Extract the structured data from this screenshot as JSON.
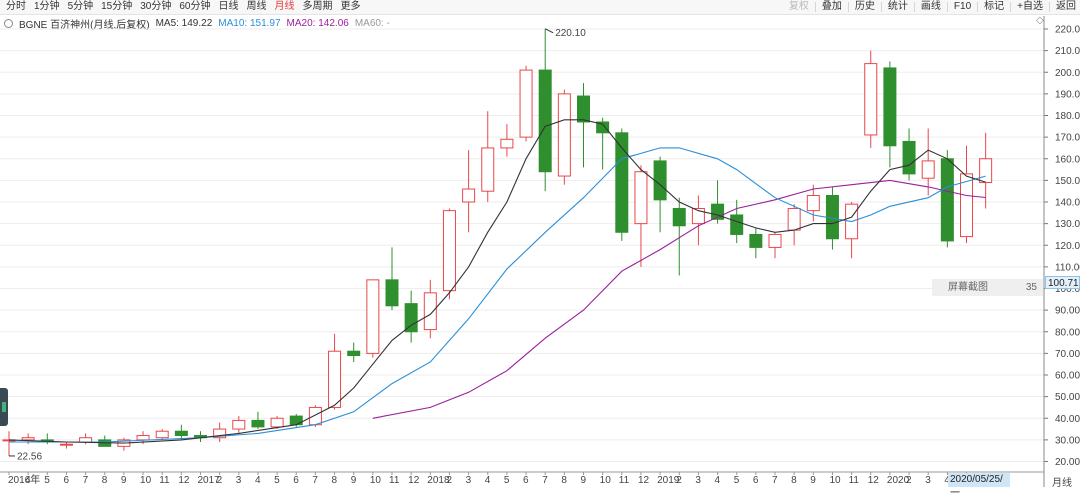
{
  "toolbar": {
    "periods": [
      "分时",
      "1分钟",
      "5分钟",
      "15分钟",
      "30分钟",
      "60分钟",
      "日线",
      "周线",
      "月线",
      "多周期",
      "更多"
    ],
    "active_period": "月线",
    "right_items": [
      "复权",
      "叠加",
      "历史",
      "统计",
      "画线",
      "F10",
      "标记",
      "+自选",
      "返回"
    ]
  },
  "legend": {
    "symbol": "BGNE 百济神州(月线,后复权)",
    "ma5": "MA5: 149.22",
    "ma10": "MA10: 151.97",
    "ma20": "MA20: 142.06",
    "ma60": "MA60: -"
  },
  "colors": {
    "up": "#e8474b",
    "down": "#2f8f2f",
    "ma5": "#333333",
    "ma10": "#2a8fd8",
    "ma20": "#9b1f9b",
    "grid": "#ededed"
  },
  "annotations": {
    "high_label": "220.10",
    "low_label": "22.56",
    "current_price": "100.71",
    "cursor_date": "2020/05/25/一",
    "period_label": "月线",
    "tooltip_label": "屏幕截图",
    "tooltip_value": "35"
  },
  "chart_data": {
    "type": "candlestick",
    "ylim": [
      15,
      225
    ],
    "y_ticks": [
      20,
      30,
      40,
      50,
      60,
      70,
      80,
      90,
      100,
      110,
      120,
      130,
      140,
      150,
      160,
      170,
      180,
      190,
      200,
      210,
      220
    ],
    "x_tick_labels": [
      "2016年",
      "4",
      "5",
      "6",
      "7",
      "8",
      "9",
      "10",
      "11",
      "12",
      "2017",
      "2",
      "3",
      "4",
      "5",
      "6",
      "7",
      "8",
      "9",
      "10",
      "11",
      "12",
      "2018",
      "2",
      "3",
      "4",
      "5",
      "6",
      "7",
      "8",
      "9",
      "10",
      "11",
      "12",
      "2019",
      "2",
      "3",
      "4",
      "5",
      "6",
      "7",
      "8",
      "9",
      "10",
      "11",
      "12",
      "2020",
      "2",
      "3",
      "4",
      "5"
    ],
    "candles": [
      {
        "o": 30,
        "h": 34,
        "l": 22.56,
        "c": 30
      },
      {
        "o": 30,
        "h": 33,
        "l": 28,
        "c": 31
      },
      {
        "o": 30,
        "h": 33,
        "l": 28,
        "c": 29
      },
      {
        "o": 28,
        "h": 29,
        "l": 26,
        "c": 28
      },
      {
        "o": 29,
        "h": 33,
        "l": 28,
        "c": 31
      },
      {
        "o": 30,
        "h": 32,
        "l": 27,
        "c": 27
      },
      {
        "o": 27,
        "h": 31,
        "l": 25,
        "c": 30
      },
      {
        "o": 30,
        "h": 34,
        "l": 28,
        "c": 32
      },
      {
        "o": 31,
        "h": 35,
        "l": 30,
        "c": 34
      },
      {
        "o": 34,
        "h": 37,
        "l": 30,
        "c": 32
      },
      {
        "o": 32,
        "h": 34,
        "l": 29,
        "c": 31
      },
      {
        "o": 31,
        "h": 38,
        "l": 29,
        "c": 35
      },
      {
        "o": 35,
        "h": 41,
        "l": 33,
        "c": 39
      },
      {
        "o": 39,
        "h": 43,
        "l": 35,
        "c": 36
      },
      {
        "o": 36,
        "h": 41,
        "l": 35,
        "c": 40
      },
      {
        "o": 41,
        "h": 42,
        "l": 36,
        "c": 37
      },
      {
        "o": 37,
        "h": 46,
        "l": 36,
        "c": 45
      },
      {
        "o": 45,
        "h": 79,
        "l": 44,
        "c": 71
      },
      {
        "o": 71,
        "h": 75,
        "l": 66,
        "c": 69
      },
      {
        "o": 70,
        "h": 104,
        "l": 68,
        "c": 104
      },
      {
        "o": 104,
        "h": 119,
        "l": 90,
        "c": 92
      },
      {
        "o": 93,
        "h": 99,
        "l": 75,
        "c": 80
      },
      {
        "o": 81,
        "h": 104,
        "l": 77,
        "c": 98
      },
      {
        "o": 99,
        "h": 137,
        "l": 95,
        "c": 136
      },
      {
        "o": 140,
        "h": 164,
        "l": 126,
        "c": 146
      },
      {
        "o": 145,
        "h": 182,
        "l": 140,
        "c": 165
      },
      {
        "o": 165,
        "h": 176,
        "l": 161,
        "c": 169
      },
      {
        "o": 170,
        "h": 203,
        "l": 168,
        "c": 201
      },
      {
        "o": 201,
        "h": 220.1,
        "l": 145,
        "c": 154
      },
      {
        "o": 152,
        "h": 192,
        "l": 148,
        "c": 190
      },
      {
        "o": 189,
        "h": 195,
        "l": 156,
        "c": 177
      },
      {
        "o": 177,
        "h": 179,
        "l": 155,
        "c": 172
      },
      {
        "o": 172,
        "h": 174,
        "l": 122,
        "c": 126
      },
      {
        "o": 130,
        "h": 157,
        "l": 110,
        "c": 154
      },
      {
        "o": 159,
        "h": 161,
        "l": 126,
        "c": 141
      },
      {
        "o": 137,
        "h": 142,
        "l": 106,
        "c": 129
      },
      {
        "o": 130,
        "h": 143,
        "l": 120,
        "c": 137
      },
      {
        "o": 139,
        "h": 150,
        "l": 130,
        "c": 132
      },
      {
        "o": 134,
        "h": 141,
        "l": 121,
        "c": 125
      },
      {
        "o": 125,
        "h": 128,
        "l": 114,
        "c": 119
      },
      {
        "o": 119,
        "h": 126,
        "l": 114,
        "c": 125
      },
      {
        "o": 127,
        "h": 139,
        "l": 120,
        "c": 137
      },
      {
        "o": 136,
        "h": 148,
        "l": 131,
        "c": 143
      },
      {
        "o": 143,
        "h": 147,
        "l": 118,
        "c": 123
      },
      {
        "o": 123,
        "h": 140,
        "l": 114,
        "c": 139
      },
      {
        "o": 171,
        "h": 210,
        "l": 165,
        "c": 204
      },
      {
        "o": 202,
        "h": 205,
        "l": 156,
        "c": 166
      },
      {
        "o": 168,
        "h": 174,
        "l": 150,
        "c": 153
      },
      {
        "o": 151,
        "h": 174,
        "l": 143,
        "c": 159
      },
      {
        "o": 160,
        "h": 164,
        "l": 119,
        "c": 122
      },
      {
        "o": 124,
        "h": 166,
        "l": 121,
        "c": 153
      },
      {
        "o": 149,
        "h": 172,
        "l": 137,
        "c": 160
      }
    ],
    "ma5": [
      {
        "i": 0,
        "v": 30
      },
      {
        "i": 3,
        "v": 29
      },
      {
        "i": 6,
        "v": 28.5
      },
      {
        "i": 9,
        "v": 30
      },
      {
        "i": 12,
        "v": 33
      },
      {
        "i": 15,
        "v": 37
      },
      {
        "i": 17,
        "v": 46
      },
      {
        "i": 18,
        "v": 54
      },
      {
        "i": 19,
        "v": 65
      },
      {
        "i": 20,
        "v": 76
      },
      {
        "i": 21,
        "v": 83
      },
      {
        "i": 22,
        "v": 88
      },
      {
        "i": 23,
        "v": 98
      },
      {
        "i": 24,
        "v": 110
      },
      {
        "i": 25,
        "v": 126
      },
      {
        "i": 26,
        "v": 140
      },
      {
        "i": 27,
        "v": 160
      },
      {
        "i": 28,
        "v": 175
      },
      {
        "i": 29,
        "v": 178
      },
      {
        "i": 30,
        "v": 178
      },
      {
        "i": 31,
        "v": 176
      },
      {
        "i": 32,
        "v": 165
      },
      {
        "i": 33,
        "v": 155
      },
      {
        "i": 34,
        "v": 148
      },
      {
        "i": 35,
        "v": 140
      },
      {
        "i": 36,
        "v": 136
      },
      {
        "i": 37,
        "v": 134
      },
      {
        "i": 38,
        "v": 131
      },
      {
        "i": 39,
        "v": 128
      },
      {
        "i": 40,
        "v": 126
      },
      {
        "i": 41,
        "v": 127
      },
      {
        "i": 42,
        "v": 130
      },
      {
        "i": 43,
        "v": 130
      },
      {
        "i": 44,
        "v": 133
      },
      {
        "i": 45,
        "v": 145
      },
      {
        "i": 46,
        "v": 155
      },
      {
        "i": 47,
        "v": 157
      },
      {
        "i": 48,
        "v": 164
      },
      {
        "i": 49,
        "v": 160
      },
      {
        "i": 50,
        "v": 152
      },
      {
        "i": 51,
        "v": 149.22
      }
    ],
    "ma10": [
      {
        "i": 0,
        "v": 29
      },
      {
        "i": 5,
        "v": 29
      },
      {
        "i": 10,
        "v": 31
      },
      {
        "i": 13,
        "v": 33
      },
      {
        "i": 16,
        "v": 37
      },
      {
        "i": 18,
        "v": 43
      },
      {
        "i": 20,
        "v": 56
      },
      {
        "i": 22,
        "v": 66
      },
      {
        "i": 24,
        "v": 86
      },
      {
        "i": 26,
        "v": 109
      },
      {
        "i": 28,
        "v": 126
      },
      {
        "i": 30,
        "v": 142
      },
      {
        "i": 32,
        "v": 160
      },
      {
        "i": 34,
        "v": 165
      },
      {
        "i": 35,
        "v": 165
      },
      {
        "i": 37,
        "v": 160
      },
      {
        "i": 38,
        "v": 155
      },
      {
        "i": 40,
        "v": 142
      },
      {
        "i": 42,
        "v": 134
      },
      {
        "i": 44,
        "v": 131
      },
      {
        "i": 45,
        "v": 134
      },
      {
        "i": 46,
        "v": 138
      },
      {
        "i": 48,
        "v": 142
      },
      {
        "i": 49,
        "v": 147
      },
      {
        "i": 51,
        "v": 151.97
      }
    ],
    "ma20": [
      {
        "i": 19,
        "v": 40
      },
      {
        "i": 22,
        "v": 45
      },
      {
        "i": 24,
        "v": 52
      },
      {
        "i": 26,
        "v": 62
      },
      {
        "i": 28,
        "v": 77
      },
      {
        "i": 30,
        "v": 90
      },
      {
        "i": 32,
        "v": 108
      },
      {
        "i": 34,
        "v": 118
      },
      {
        "i": 36,
        "v": 129
      },
      {
        "i": 38,
        "v": 137
      },
      {
        "i": 40,
        "v": 141
      },
      {
        "i": 42,
        "v": 146
      },
      {
        "i": 44,
        "v": 148
      },
      {
        "i": 46,
        "v": 150
      },
      {
        "i": 48,
        "v": 147
      },
      {
        "i": 50,
        "v": 143
      },
      {
        "i": 51,
        "v": 142.06
      }
    ]
  }
}
